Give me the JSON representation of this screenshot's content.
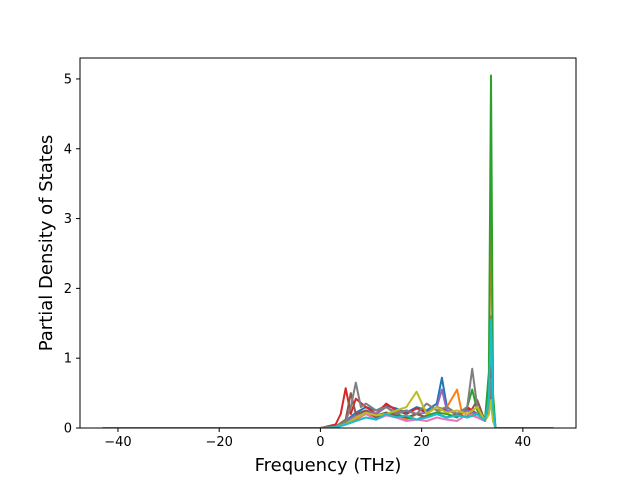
{
  "chart_data": {
    "type": "line",
    "xlabel": "Frequency (THz)",
    "ylabel": "Partial Density of States",
    "xlim": [
      -47.5,
      50.5
    ],
    "ylim": [
      0,
      5.3
    ],
    "xticks": [
      -40,
      -20,
      0,
      20,
      40
    ],
    "xtick_labels": [
      "−40",
      "−20",
      "0",
      "20",
      "40"
    ],
    "yticks": [
      0,
      1,
      2,
      3,
      4,
      5
    ],
    "ytick_labels": [
      "0",
      "1",
      "2",
      "3",
      "4",
      "5"
    ],
    "grid": false,
    "legend": "none",
    "colors": [
      "#1f77b4",
      "#ff7f0e",
      "#2ca02c",
      "#d62728",
      "#9467bd",
      "#8c564b",
      "#e377c2",
      "#7f7f7f",
      "#bcbd22",
      "#17becf"
    ],
    "series": [
      {
        "color": "#1f77b4",
        "x": [
          -43,
          0,
          3,
          5,
          7,
          9,
          11,
          13,
          15,
          17,
          19,
          21,
          23,
          24,
          25,
          27,
          29,
          31,
          32.5,
          33.3,
          33.7,
          34.1,
          34.6,
          46
        ],
        "y": [
          0,
          0,
          0.02,
          0.1,
          0.22,
          0.3,
          0.25,
          0.32,
          0.28,
          0.22,
          0.3,
          0.25,
          0.35,
          0.72,
          0.3,
          0.2,
          0.28,
          0.2,
          0.1,
          0.5,
          1.6,
          0.3,
          0,
          0
        ]
      },
      {
        "color": "#ff7f0e",
        "x": [
          -43,
          0,
          3,
          5,
          7,
          9,
          11,
          13,
          15,
          17,
          19,
          21,
          23,
          25,
          27,
          28,
          29,
          31,
          32.5,
          33.3,
          33.7,
          34.1,
          34.6,
          46
        ],
        "y": [
          0,
          0,
          0.01,
          0.05,
          0.12,
          0.2,
          0.15,
          0.22,
          0.18,
          0.12,
          0.2,
          0.15,
          0.22,
          0.3,
          0.55,
          0.2,
          0.25,
          0.15,
          0.1,
          0.6,
          3.3,
          0.4,
          0,
          0
        ]
      },
      {
        "color": "#2ca02c",
        "x": [
          -43,
          0,
          3,
          5,
          7,
          9,
          11,
          13,
          15,
          17,
          19,
          21,
          23,
          25,
          27,
          29,
          30,
          31,
          32.5,
          33.3,
          33.7,
          34.1,
          34.6,
          46
        ],
        "y": [
          0,
          0,
          0.01,
          0.08,
          0.15,
          0.25,
          0.18,
          0.22,
          0.2,
          0.15,
          0.12,
          0.18,
          0.22,
          0.2,
          0.15,
          0.3,
          0.55,
          0.25,
          0.1,
          0.8,
          5.05,
          0.5,
          0,
          0
        ]
      },
      {
        "color": "#d62728",
        "x": [
          -43,
          0,
          3,
          4,
          5,
          6,
          7,
          9,
          11,
          13,
          15,
          17,
          19,
          21,
          23,
          25,
          27,
          29,
          31,
          32.5,
          33.3,
          33.7,
          34.1,
          34.6,
          46
        ],
        "y": [
          0,
          0,
          0.05,
          0.2,
          0.57,
          0.2,
          0.42,
          0.3,
          0.2,
          0.35,
          0.25,
          0.2,
          0.28,
          0.22,
          0.3,
          0.25,
          0.2,
          0.3,
          0.2,
          0.1,
          0.3,
          0.9,
          0.2,
          0,
          0
        ]
      },
      {
        "color": "#9467bd",
        "x": [
          -43,
          0,
          3,
          5,
          7,
          9,
          11,
          13,
          15,
          17,
          19,
          21,
          23,
          24,
          25,
          27,
          29,
          31,
          32.5,
          33.3,
          33.7,
          34.1,
          34.6,
          46
        ],
        "y": [
          0,
          0,
          0.02,
          0.1,
          0.18,
          0.25,
          0.2,
          0.3,
          0.22,
          0.25,
          0.2,
          0.22,
          0.3,
          0.55,
          0.25,
          0.2,
          0.25,
          0.2,
          0.1,
          0.3,
          0.6,
          0.2,
          0,
          0
        ]
      },
      {
        "color": "#8c564b",
        "x": [
          -43,
          0,
          3,
          5,
          6,
          7,
          9,
          11,
          13,
          15,
          17,
          19,
          21,
          23,
          25,
          27,
          29,
          31,
          32.5,
          33.3,
          33.7,
          34.1,
          34.6,
          46
        ],
        "y": [
          0,
          0,
          0.02,
          0.12,
          0.5,
          0.2,
          0.25,
          0.15,
          0.22,
          0.18,
          0.15,
          0.2,
          0.15,
          0.2,
          0.15,
          0.2,
          0.15,
          0.4,
          0.1,
          0.3,
          0.5,
          0.2,
          0,
          0
        ]
      },
      {
        "color": "#e377c2",
        "x": [
          -43,
          0,
          3,
          5,
          7,
          9,
          11,
          13,
          15,
          17,
          19,
          21,
          23,
          25,
          27,
          29,
          31,
          32.5,
          33.3,
          33.7,
          34.1,
          34.6,
          46
        ],
        "y": [
          0,
          0,
          0.01,
          0.05,
          0.15,
          0.2,
          0.12,
          0.18,
          0.15,
          0.1,
          0.12,
          0.1,
          0.15,
          0.12,
          0.1,
          0.2,
          0.15,
          0.1,
          0.2,
          0.4,
          0.1,
          0,
          0
        ]
      },
      {
        "color": "#7f7f7f",
        "x": [
          -43,
          0,
          3,
          5,
          6,
          7,
          8,
          9,
          11,
          13,
          15,
          17,
          19,
          21,
          23,
          25,
          27,
          29,
          30,
          31,
          32.5,
          33.3,
          33.7,
          34.1,
          34.6,
          46
        ],
        "y": [
          0,
          0,
          0.02,
          0.1,
          0.3,
          0.65,
          0.3,
          0.35,
          0.25,
          0.3,
          0.2,
          0.25,
          0.2,
          0.35,
          0.25,
          0.3,
          0.2,
          0.3,
          0.85,
          0.3,
          0.1,
          0.3,
          0.7,
          0.2,
          0,
          0
        ]
      },
      {
        "color": "#bcbd22",
        "x": [
          -43,
          0,
          3,
          5,
          7,
          9,
          11,
          13,
          15,
          17,
          19,
          21,
          23,
          25,
          27,
          29,
          31,
          32.5,
          33.3,
          33.7,
          34.1,
          34.6,
          46
        ],
        "y": [
          0,
          0,
          0.01,
          0.06,
          0.15,
          0.22,
          0.18,
          0.2,
          0.25,
          0.3,
          0.52,
          0.2,
          0.3,
          0.22,
          0.25,
          0.2,
          0.3,
          0.1,
          0.2,
          0.4,
          0.1,
          0,
          0
        ]
      },
      {
        "color": "#17becf",
        "x": [
          -43,
          0,
          3,
          5,
          7,
          9,
          11,
          13,
          15,
          17,
          19,
          21,
          23,
          25,
          27,
          29,
          31,
          32.5,
          33.3,
          33.7,
          34.1,
          34.6,
          46
        ],
        "y": [
          0,
          0,
          0.01,
          0.05,
          0.1,
          0.15,
          0.12,
          0.2,
          0.15,
          0.18,
          0.12,
          0.15,
          0.2,
          0.15,
          0.18,
          0.15,
          0.2,
          0.1,
          0.4,
          1.55,
          0.3,
          0,
          0
        ]
      }
    ]
  }
}
